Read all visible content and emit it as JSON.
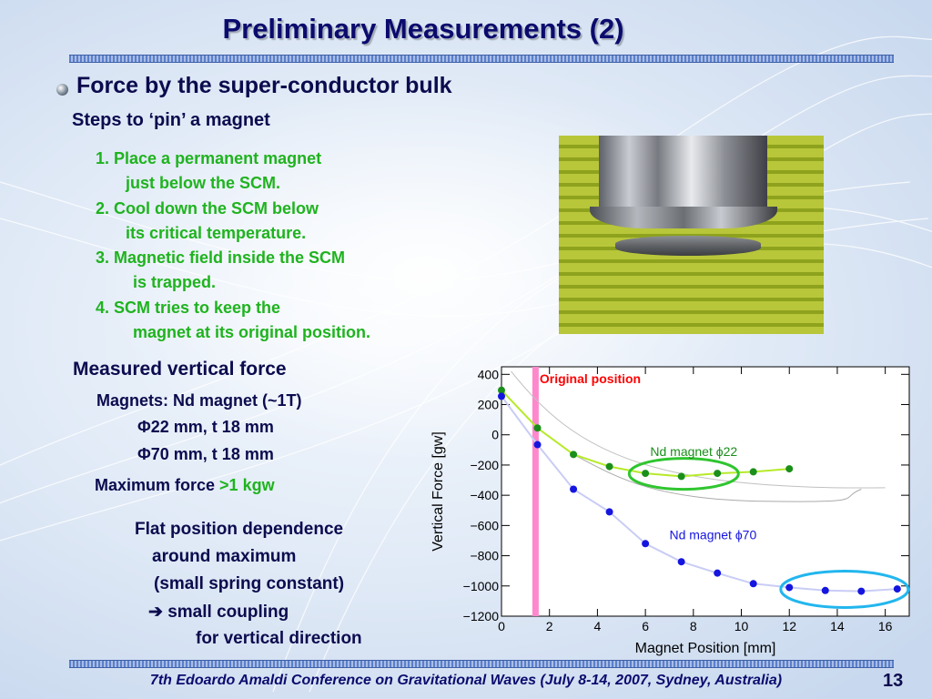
{
  "slide": {
    "title": "Preliminary Measurements (2)",
    "heading": "Force by the super-conductor bulk",
    "subheading": "Steps to ‘pin’ a magnet",
    "steps": [
      "1. Place a permanent magnet",
      "just below the SCM.",
      "2. Cool down the SCM below",
      "its critical temperature.",
      "3. Magnetic field inside the SCM",
      "is trapped.",
      "4. SCM tries to keep the",
      "magnet at its original position."
    ],
    "measured_heading": "Measured vertical force",
    "magnets_line": "Magnets:  Nd magnet (~1T)",
    "magnet_a": "Φ22 mm, t 18 mm",
    "magnet_b": "Φ70 mm, t 18 mm",
    "max_force_label": "Maximum force ",
    "max_force_value": ">1 kgw",
    "flat_lines": [
      "Flat position dependence",
      "around maximum",
      "(small spring constant)",
      "small coupling",
      "for vertical direction"
    ],
    "arrow_glyph": "➔",
    "footer": "7th Edoardo Amaldi Conference on Gravitational Waves (July 8-14, 2007, Sydney, Australia)",
    "page_number": "13",
    "colors": {
      "title": "#0b0b6e",
      "text": "#0b0b4e",
      "green": "#1fb31f"
    }
  },
  "chart_data": {
    "type": "scatter",
    "xlabel": "Magnet Position   [mm]",
    "ylabel": "Vertical Force  [gw]",
    "xlim": [
      0,
      17
    ],
    "ylim": [
      -1200,
      450
    ],
    "xticks": [
      0,
      2,
      4,
      6,
      8,
      10,
      12,
      14,
      16
    ],
    "yticks": [
      400,
      200,
      0,
      -200,
      -400,
      -600,
      -800,
      -1000,
      -1200
    ],
    "ytick_labels": [
      "400",
      "200",
      "0",
      "−200",
      "−400",
      "−600",
      "−800",
      "−1000",
      "−1200"
    ],
    "marker": {
      "x": 1.4,
      "label": "Original position",
      "color": "#ff0000",
      "bar_color": "#ff88cc"
    },
    "series": [
      {
        "name": "Nd magnet ϕ22",
        "color": "#1a8f1a",
        "line_color": "#b6ea2a",
        "ellipse_color": "#2fc52f",
        "x": [
          0,
          1.5,
          3,
          4.5,
          6,
          7.5,
          9,
          10.5,
          12
        ],
        "y": [
          295,
          45,
          -130,
          -210,
          -255,
          -275,
          -255,
          -245,
          -225
        ]
      },
      {
        "name": "Nd magnet ϕ70",
        "color": "#1515e0",
        "line_color": "#c9cdf5",
        "ellipse_color": "#22b6ee",
        "x": [
          0,
          1.5,
          3,
          4.5,
          6,
          7.5,
          9,
          10.5,
          12,
          13.5,
          15,
          16.5
        ],
        "y": [
          255,
          -65,
          -360,
          -510,
          -720,
          -840,
          -915,
          -985,
          -1010,
          -1030,
          -1035,
          -1020
        ]
      }
    ],
    "grid": false
  }
}
